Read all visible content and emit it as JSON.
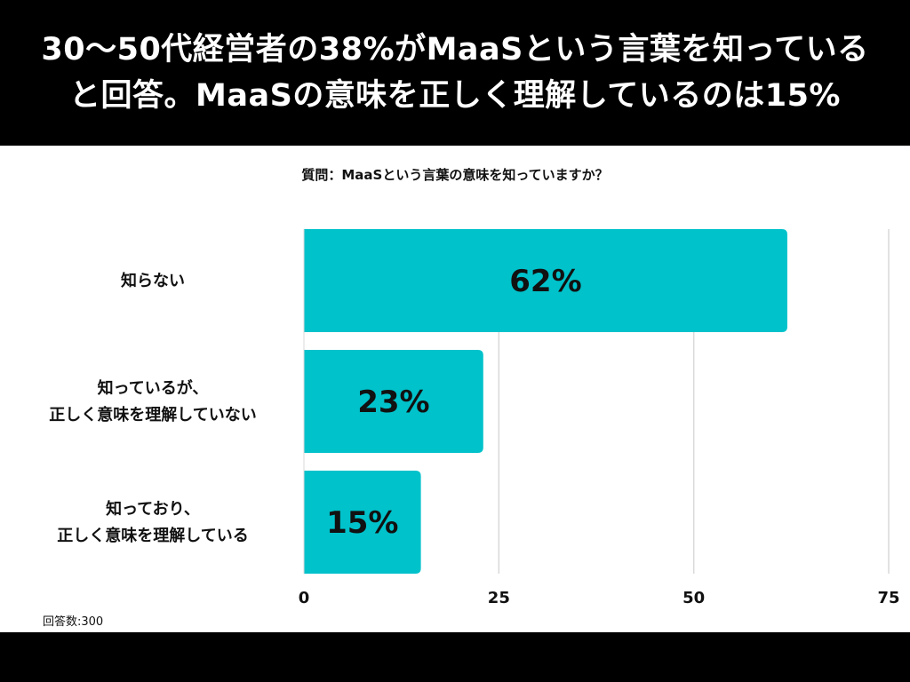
{
  "header": {
    "title_line1": "30〜50代経営者の38%がMaaSという言葉を知っている",
    "title_line2": "と回答。MaaSの意味を正しく理解しているのは15%"
  },
  "question": "質問：MaaSという言葉の意味を知っていますか？",
  "sample_size": "回答数:300",
  "chart_data": {
    "type": "bar",
    "orientation": "horizontal",
    "title": "質問：MaaSという言葉の意味を知っていますか？",
    "categories": [
      [
        "知らない"
      ],
      [
        "知っているが、",
        "正しく意味を理解していない"
      ],
      [
        "知っており、",
        "正しく意味を理解している"
      ]
    ],
    "values": [
      62,
      23,
      15
    ],
    "value_labels": [
      "62%",
      "23%",
      "15%"
    ],
    "xlim": [
      0,
      75
    ],
    "ticks": [
      0,
      25,
      50,
      75
    ],
    "grid": true,
    "bar_color": "#00C2CB"
  }
}
